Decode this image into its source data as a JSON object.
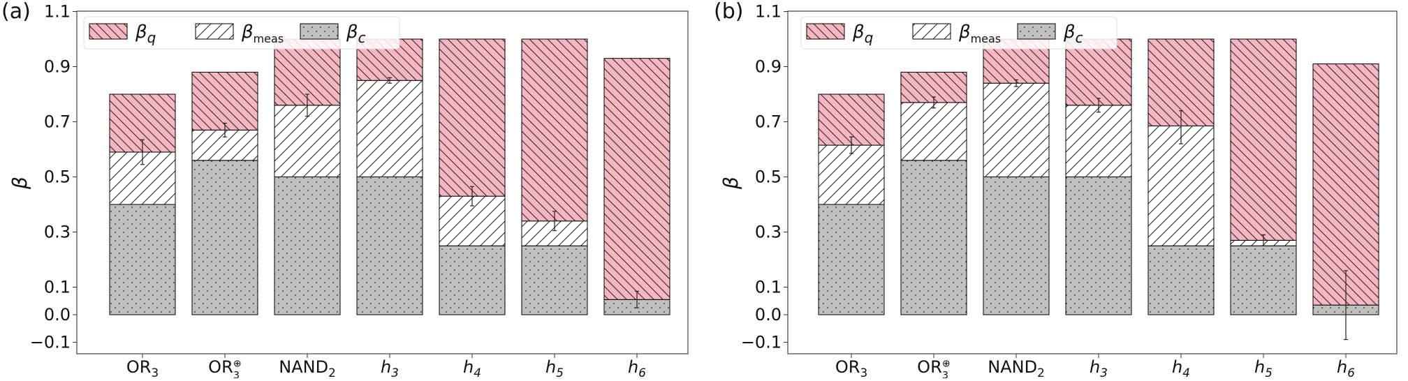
{
  "chart_data": [
    {
      "type": "bar",
      "panel": "(a)",
      "ylabel": "β",
      "ylim": [
        -0.12,
        1.1
      ],
      "yticks": [
        "−0.1",
        "0.0",
        "0.1",
        "0.3",
        "0.5",
        "0.7",
        "0.9",
        "1.1"
      ],
      "ytick_values": [
        -0.1,
        0,
        0.1,
        0.3,
        0.5,
        0.7,
        0.9,
        1.1
      ],
      "categories": [
        {
          "base": "OR",
          "sub": "3",
          "sup": "",
          "italic": false
        },
        {
          "base": "OR",
          "sub": "3",
          "sup": "⊕",
          "italic": false
        },
        {
          "base": "NAND",
          "sub": "2",
          "sup": "",
          "italic": false
        },
        {
          "base": "h",
          "sub": "3",
          "sup": "",
          "italic": true
        },
        {
          "base": "h",
          "sub": "4",
          "sup": "",
          "italic": true
        },
        {
          "base": "h",
          "sub": "5",
          "sup": "",
          "italic": true
        },
        {
          "base": "h",
          "sub": "6",
          "sup": "",
          "italic": true
        }
      ],
      "legend": [
        {
          "key": "q",
          "base": "β",
          "sub": "q"
        },
        {
          "key": "meas",
          "base": "β",
          "sub": "meas"
        },
        {
          "key": "c",
          "base": "β",
          "sub": "c"
        }
      ],
      "series": [
        {
          "key": "c",
          "values": [
            0.4,
            0.56,
            0.5,
            0.5,
            0.25,
            0.25,
            0.125
          ]
        },
        {
          "key": "meas",
          "values": [
            0.19,
            0.11,
            0.26,
            0.35,
            0.18,
            0.09,
            -0.07
          ]
        },
        {
          "key": "q",
          "values": [
            0.21,
            0.21,
            0.24,
            0.15,
            0.57,
            0.66,
            0.875
          ]
        }
      ],
      "error_bars": [
        {
          "center": 0.59,
          "err": 0.045
        },
        {
          "center": 0.67,
          "err": 0.025
        },
        {
          "center": 0.76,
          "err": 0.04
        },
        {
          "center": 0.85,
          "err": 0.01
        },
        {
          "center": 0.43,
          "err": 0.035
        },
        {
          "center": 0.34,
          "err": 0.035
        },
        {
          "center": 0.055,
          "err": 0.03
        }
      ],
      "colors": {
        "q": "#f7b6c0",
        "meas": "#ffffff",
        "c": "#c0c0c0",
        "edge": "#000000"
      },
      "legend_position": "top-left"
    },
    {
      "type": "bar",
      "panel": "(b)",
      "ylabel": "β",
      "ylim": [
        -0.12,
        1.1
      ],
      "yticks": [
        "−0.1",
        "0.0",
        "0.1",
        "0.3",
        "0.5",
        "0.7",
        "0.9",
        "1.1"
      ],
      "ytick_values": [
        -0.1,
        0,
        0.1,
        0.3,
        0.5,
        0.7,
        0.9,
        1.1
      ],
      "categories": [
        {
          "base": "OR",
          "sub": "3",
          "sup": "",
          "italic": false
        },
        {
          "base": "OR",
          "sub": "3",
          "sup": "⊕",
          "italic": false
        },
        {
          "base": "NAND",
          "sub": "2",
          "sup": "",
          "italic": false
        },
        {
          "base": "h",
          "sub": "3",
          "sup": "",
          "italic": true
        },
        {
          "base": "h",
          "sub": "4",
          "sup": "",
          "italic": true
        },
        {
          "base": "h",
          "sub": "5",
          "sup": "",
          "italic": true
        },
        {
          "base": "h",
          "sub": "6",
          "sup": "",
          "italic": true
        }
      ],
      "legend": [
        {
          "key": "q",
          "base": "β",
          "sub": "q"
        },
        {
          "key": "meas",
          "base": "β",
          "sub": "meas"
        },
        {
          "key": "c",
          "base": "β",
          "sub": "c"
        }
      ],
      "series": [
        {
          "key": "c",
          "values": [
            0.4,
            0.56,
            0.5,
            0.5,
            0.25,
            0.25,
            0.125
          ]
        },
        {
          "key": "meas",
          "values": [
            0.215,
            0.21,
            0.34,
            0.26,
            0.435,
            0.02,
            -0.09
          ]
        },
        {
          "key": "q",
          "values": [
            0.185,
            0.11,
            0.16,
            0.24,
            0.315,
            0.73,
            0.875
          ]
        }
      ],
      "error_bars": [
        {
          "center": 0.615,
          "err": 0.03
        },
        {
          "center": 0.77,
          "err": 0.02
        },
        {
          "center": 0.84,
          "err": 0.012
        },
        {
          "center": 0.76,
          "err": 0.025
        },
        {
          "center": 0.68,
          "err": 0.06
        },
        {
          "center": 0.27,
          "err": 0.02
        },
        {
          "center": 0.035,
          "err": 0.125
        }
      ],
      "colors": {
        "q": "#f7b6c0",
        "meas": "#ffffff",
        "c": "#c0c0c0",
        "edge": "#000000"
      },
      "legend_position": "top-left"
    }
  ]
}
